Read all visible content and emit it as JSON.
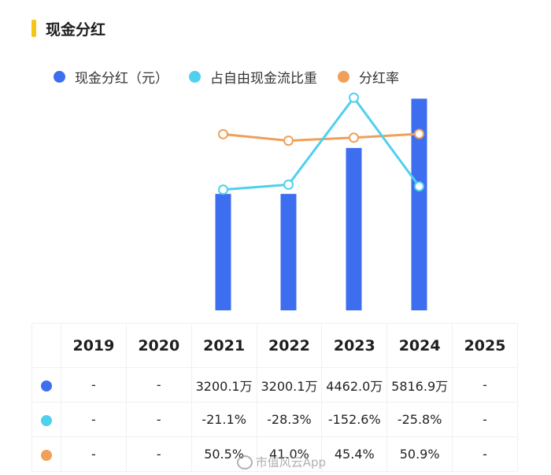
{
  "title": "现金分红",
  "colors": {
    "accent_bar": "#f5c518",
    "bar": "#3d6ef0",
    "share_line": "#4fd0ee",
    "payout_line": "#f0a058"
  },
  "legend": {
    "items": [
      {
        "label": "现金分红（元）",
        "color": "#3d6ef0"
      },
      {
        "label": "占自由现金流比重",
        "color": "#4fd0ee"
      },
      {
        "label": "分红率",
        "color": "#f0a058"
      }
    ]
  },
  "table": {
    "years": [
      "2019",
      "2020",
      "2021",
      "2022",
      "2023",
      "2024",
      "2025"
    ],
    "rows": [
      {
        "color": "#3d6ef0",
        "cells": [
          "-",
          "-",
          "3200.1万",
          "3200.1万",
          "4462.0万",
          "5816.9万",
          "-"
        ]
      },
      {
        "color": "#4fd0ee",
        "cells": [
          "-",
          "-",
          "-21.1%",
          "-28.3%",
          "-152.6%",
          "-25.8%",
          "-"
        ]
      },
      {
        "color": "#f0a058",
        "cells": [
          "-",
          "-",
          "50.5%",
          "41.0%",
          "45.4%",
          "50.9%",
          "-"
        ]
      }
    ]
  },
  "watermark": "市值风云App",
  "chart_data": {
    "type": "bar",
    "categories": [
      "2019",
      "2020",
      "2021",
      "2022",
      "2023",
      "2024",
      "2025"
    ],
    "series": [
      {
        "name": "现金分红（元）",
        "type": "bar",
        "values": [
          null,
          null,
          3200.1,
          3200.1,
          4462.0,
          5816.9,
          null
        ]
      },
      {
        "name": "占自由现金流比重",
        "type": "line",
        "values": [
          null,
          null,
          -21.1,
          -28.3,
          -152.6,
          -25.8,
          null
        ]
      },
      {
        "name": "分红率",
        "type": "line",
        "values": [
          null,
          null,
          50.5,
          41.0,
          45.4,
          50.9,
          null
        ]
      }
    ],
    "legend": "top",
    "grid": false
  }
}
